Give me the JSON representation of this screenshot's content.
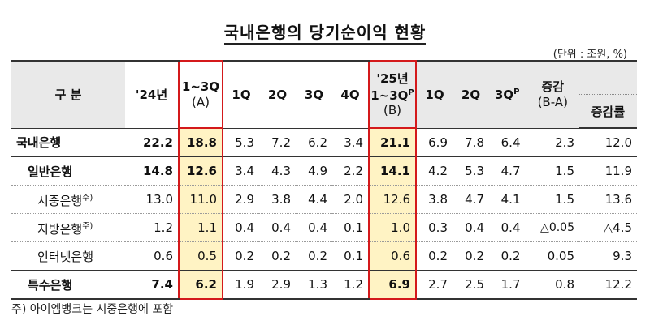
{
  "title": "국내은행의 당기순이익 현황",
  "unit": "(단위 : 조원, %)",
  "header": {
    "category": "구 분",
    "y24": "'24년",
    "q13a_line1": "1~3Q",
    "q13a_line2": "(A)",
    "q1": "1Q",
    "q2": "2Q",
    "q3": "3Q",
    "q4": "4Q",
    "y25_line1": "'25년",
    "y25_line2": "1~3Q",
    "y25_sup": "P",
    "y25_line3": "(B)",
    "n1": "1Q",
    "n2": "2Q",
    "n3": "3Q",
    "n3_sup": "P",
    "change_line1": "증감",
    "change_line2": "(B-A)",
    "rate": "증감률"
  },
  "rows": [
    {
      "label": "국내은행",
      "sup": "",
      "y24": "22.2",
      "a": "18.8",
      "q1": "5.3",
      "q2": "7.2",
      "q3": "6.2",
      "q4": "3.4",
      "b": "21.1",
      "n1": "6.9",
      "n2": "7.8",
      "n3": "6.4",
      "chg": "2.3",
      "rate": "12.0"
    },
    {
      "label": "일반은행",
      "sup": "",
      "y24": "14.8",
      "a": "12.6",
      "q1": "3.4",
      "q2": "4.3",
      "q3": "4.9",
      "q4": "2.2",
      "b": "14.1",
      "n1": "4.2",
      "n2": "5.3",
      "n3": "4.7",
      "chg": "1.5",
      "rate": "11.9"
    },
    {
      "label": "시중은행",
      "sup": "주)",
      "y24": "13.0",
      "a": "11.0",
      "q1": "2.9",
      "q2": "3.8",
      "q3": "4.4",
      "q4": "2.0",
      "b": "12.6",
      "n1": "3.8",
      "n2": "4.7",
      "n3": "4.1",
      "chg": "1.5",
      "rate": "13.6"
    },
    {
      "label": "지방은행",
      "sup": "주)",
      "y24": "1.2",
      "a": "1.1",
      "q1": "0.4",
      "q2": "0.4",
      "q3": "0.4",
      "q4": "0.1",
      "b": "1.0",
      "n1": "0.3",
      "n2": "0.4",
      "n3": "0.4",
      "chg": "△0.05",
      "rate": "△4.5"
    },
    {
      "label": "인터넷은행",
      "sup": "",
      "y24": "0.6",
      "a": "0.5",
      "q1": "0.2",
      "q2": "0.2",
      "q3": "0.2",
      "q4": "0.1",
      "b": "0.6",
      "n1": "0.2",
      "n2": "0.2",
      "n3": "0.2",
      "chg": "0.05",
      "rate": "9.3"
    },
    {
      "label": "특수은행",
      "sup": "",
      "y24": "7.4",
      "a": "6.2",
      "q1": "1.9",
      "q2": "2.9",
      "q3": "1.3",
      "q4": "1.2",
      "b": "6.9",
      "n1": "2.7",
      "n2": "2.5",
      "n3": "1.7",
      "chg": "0.8",
      "rate": "12.2"
    }
  ],
  "note": "주) 아이엠뱅크는 시중은행에 포함",
  "colors": {
    "highlight": "#fff3c4",
    "header_bg": "#e9e9e9",
    "red_box": "#d4191b"
  }
}
